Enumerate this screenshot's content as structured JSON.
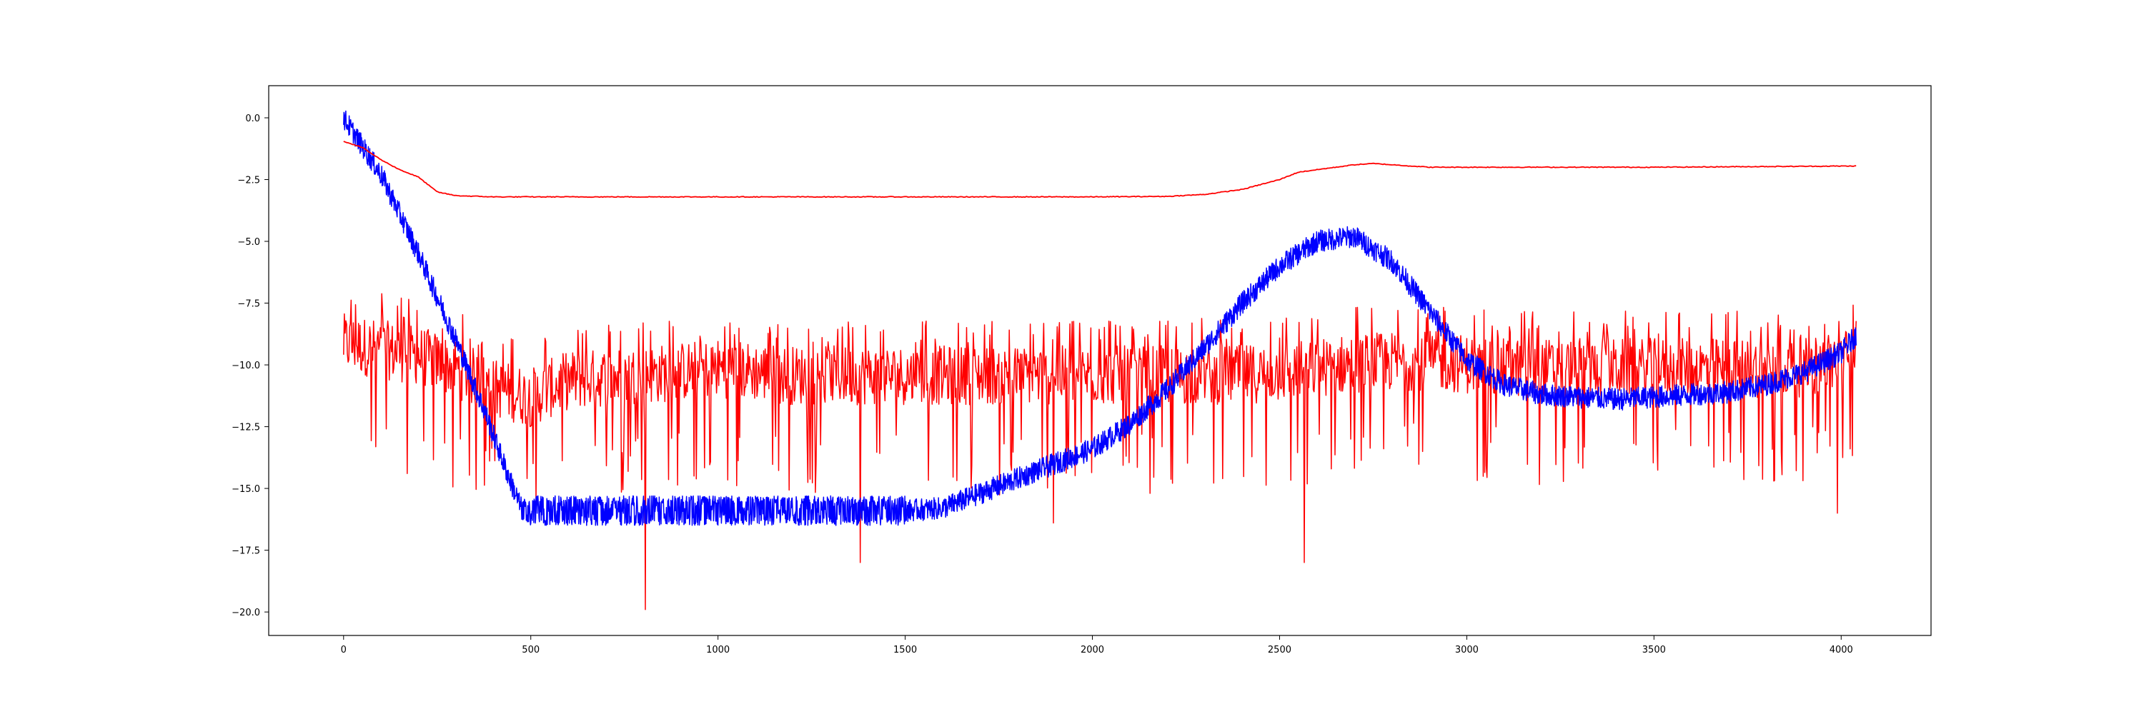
{
  "chart_data": {
    "type": "line",
    "title": "",
    "xlabel": "",
    "ylabel": "",
    "xlim": [
      -200,
      4240
    ],
    "ylim": [
      -20.95,
      1.3
    ],
    "xticks": [
      0,
      500,
      1000,
      1500,
      2000,
      2500,
      3000,
      3500,
      4000
    ],
    "yticks": [
      0.0,
      -2.5,
      -5.0,
      -7.5,
      -10.0,
      -12.5,
      -15.0,
      -17.5,
      -20.0
    ],
    "xtick_labels": [
      "0",
      "500",
      "1000",
      "1500",
      "2000",
      "2500",
      "3000",
      "3500",
      "4000"
    ],
    "ytick_labels": [
      "0.0",
      "−2.5",
      "−5.0",
      "−7.5",
      "−10.0",
      "−12.5",
      "−15.0",
      "−17.5",
      "−20.0"
    ],
    "grid": false,
    "legend": "none",
    "series": [
      {
        "color": "#0000ff",
        "style": "noisy",
        "x": [
          0,
          100,
          200,
          300,
          380,
          440,
          480,
          600,
          800,
          1000,
          1200,
          1400,
          1600,
          1700,
          1800,
          1900,
          2000,
          2100,
          2200,
          2300,
          2400,
          2500,
          2600,
          2700,
          2800,
          2900,
          3000,
          3100,
          3200,
          3300,
          3400,
          3500,
          3600,
          3700,
          3800,
          3900,
          4000,
          4040
        ],
        "y": [
          0.0,
          -2.3,
          -5.5,
          -9.0,
          -12.0,
          -14.5,
          -16.0,
          -16.0,
          -16.0,
          -16.0,
          -16.0,
          -16.0,
          -15.8,
          -15.2,
          -14.6,
          -14.0,
          -13.4,
          -12.4,
          -11.0,
          -9.3,
          -7.5,
          -6.0,
          -5.0,
          -4.8,
          -5.8,
          -7.8,
          -9.8,
          -10.8,
          -11.2,
          -11.3,
          -11.4,
          -11.3,
          -11.2,
          -11.1,
          -10.8,
          -10.3,
          -9.5,
          -8.8
        ]
      },
      {
        "color": "#ff0000",
        "style": "smooth",
        "x": [
          0,
          50,
          100,
          150,
          200,
          250,
          300,
          400,
          600,
          1000,
          1500,
          2000,
          2200,
          2300,
          2350,
          2400,
          2450,
          2500,
          2550,
          2600,
          2650,
          2700,
          2750,
          2800,
          2850,
          2900,
          3000,
          3500,
          4040
        ],
        "y": [
          -0.95,
          -1.2,
          -1.7,
          -2.1,
          -2.4,
          -3.0,
          -3.15,
          -3.2,
          -3.2,
          -3.2,
          -3.2,
          -3.2,
          -3.18,
          -3.1,
          -3.0,
          -2.9,
          -2.7,
          -2.5,
          -2.2,
          -2.1,
          -2.0,
          -1.9,
          -1.85,
          -1.9,
          -1.95,
          -2.0,
          -2.0,
          -2.0,
          -1.95
        ]
      },
      {
        "color": "#ff0000",
        "style": "spiky",
        "x": [
          0,
          200,
          300,
          400,
          500,
          600,
          800,
          1000,
          1200,
          1500,
          1700,
          1900,
          2100,
          2300,
          2500,
          2700,
          2900,
          3100,
          3300,
          3500,
          3700,
          3900,
          4040
        ],
        "y": [
          -9.0,
          -9.5,
          -10.0,
          -10.8,
          -11.2,
          -10.5,
          -10.3,
          -10.0,
          -10.3,
          -10.3,
          -10.3,
          -10.3,
          -10.3,
          -10.3,
          -10.2,
          -9.8,
          -9.7,
          -10.0,
          -10.0,
          -10.0,
          -10.0,
          -10.0,
          -9.5
        ],
        "spikes": [
          {
            "x": 806,
            "y": -19.9
          },
          {
            "x": 1380,
            "y": -18.0
          },
          {
            "x": 2565,
            "y": -18.0
          },
          {
            "x": 3990,
            "y": -16.0
          },
          {
            "x": 1895,
            "y": -16.4
          },
          {
            "x": 3820,
            "y": -14.7
          },
          {
            "x": 170,
            "y": -14.4
          }
        ]
      }
    ]
  }
}
